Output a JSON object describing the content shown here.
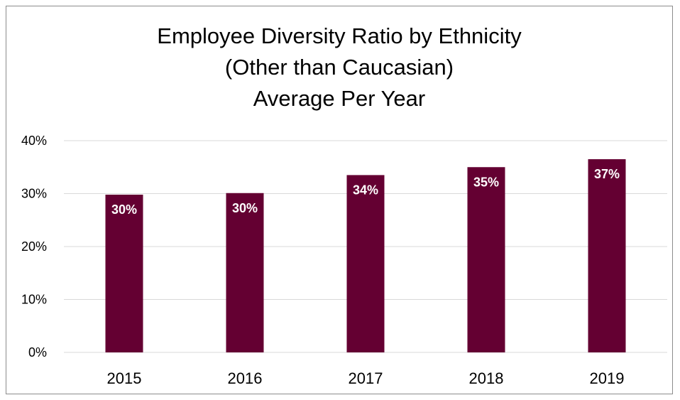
{
  "chart_data": {
    "type": "bar",
    "title": [
      "Employee Diversity Ratio by Ethnicity",
      "(Other than Caucasian)",
      "Average Per Year"
    ],
    "categories": [
      "2015",
      "2016",
      "2017",
      "2018",
      "2019"
    ],
    "values": [
      29.8,
      30.1,
      33.5,
      35.0,
      36.5
    ],
    "data_labels": [
      "30%",
      "30%",
      "34%",
      "35%",
      "37%"
    ],
    "y_ticks": [
      0,
      10,
      20,
      30,
      40
    ],
    "y_tick_labels": [
      "0%",
      "10%",
      "20%",
      "30%",
      "40%"
    ],
    "ylim": [
      0,
      40
    ],
    "grid": true,
    "legend": "none",
    "bar_color": "#640032",
    "grid_color": "#d9d9d9"
  }
}
